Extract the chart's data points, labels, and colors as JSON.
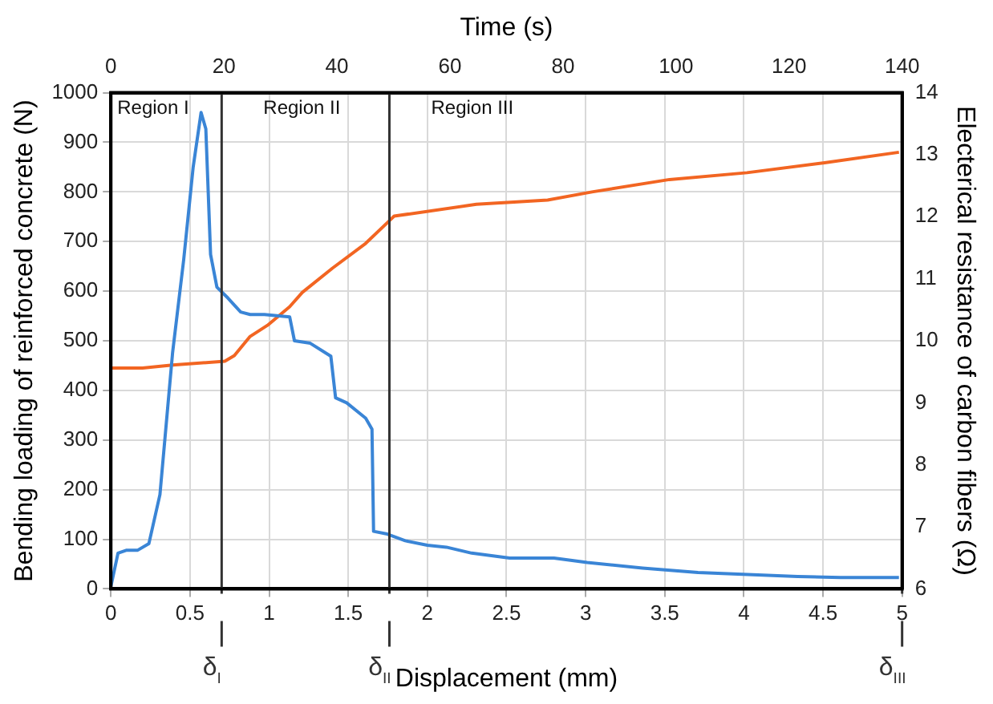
{
  "chart_data": {
    "type": "line",
    "xlabel": "Displacement (mm)",
    "x2label": "Time (s)",
    "ylabel": "Bending loading of reinforced concrete (N)",
    "y2label": "Electerical resistance of carbon fibers (Ω)",
    "xlim": [
      0,
      5
    ],
    "xticks": [
      0,
      0.5,
      1,
      1.5,
      2,
      2.5,
      3,
      3.5,
      4,
      4.5,
      5
    ],
    "x2lim": [
      0,
      140
    ],
    "x2ticks": [
      0,
      20,
      40,
      60,
      80,
      100,
      120,
      140
    ],
    "ylim": [
      0,
      1000
    ],
    "yticks": [
      0,
      100,
      200,
      300,
      400,
      500,
      600,
      700,
      800,
      900,
      1000
    ],
    "y2lim": [
      6,
      14
    ],
    "y2ticks": [
      6,
      7,
      8,
      9,
      10,
      11,
      12,
      13,
      14
    ],
    "grid": true,
    "legend": false,
    "marker": "none",
    "line_style": "solid",
    "series": [
      {
        "color": "#3a85d6",
        "x": [
          0,
          0.045,
          0.1,
          0.17,
          0.24,
          0.31,
          0.39,
          0.46,
          0.52,
          0.57,
          0.6,
          0.63,
          0.67,
          0.74,
          0.82,
          0.88,
          0.97,
          1.13,
          1.16,
          1.26,
          1.39,
          1.42,
          1.49,
          1.61,
          1.65,
          1.66,
          1.74,
          1.86,
          2.0,
          2.12,
          2.28,
          2.52,
          2.8,
          3.01,
          3.36,
          3.71,
          4.34,
          4.61,
          4.98
        ],
        "values": [
          5,
          72,
          78,
          78,
          91,
          190,
          476,
          663,
          850,
          960,
          927,
          674,
          608,
          586,
          558,
          553,
          553,
          548,
          500,
          495,
          469,
          385,
          375,
          344,
          322,
          116,
          111,
          97,
          88,
          84,
          72,
          62,
          62,
          53,
          42,
          33,
          25,
          23,
          23
        ]
      },
      {
        "color": "#f26522",
        "axis": "y2",
        "x": [
          0,
          0.2,
          0.39,
          0.72,
          0.78,
          0.88,
          0.99,
          1.13,
          1.21,
          1.4,
          1.61,
          1.77,
          1.79,
          2.31,
          2.76,
          3.04,
          3.53,
          4.02,
          4.51,
          4.98
        ],
        "values": [
          9.56,
          9.56,
          9.61,
          9.67,
          9.76,
          10.07,
          10.25,
          10.55,
          10.78,
          11.17,
          11.57,
          11.96,
          12.01,
          12.2,
          12.27,
          12.4,
          12.6,
          12.71,
          12.87,
          13.04
        ]
      }
    ],
    "ref_lines": [
      {
        "axis": "x",
        "value": 0.7,
        "label": "δ$_{I}$",
        "color": "#333333"
      },
      {
        "axis": "x",
        "value": 1.76,
        "label": "δ$_{II}$",
        "color": "#333333"
      },
      {
        "axis": "x",
        "value": 5,
        "label": "δ$_{III}$",
        "color": "#333333"
      }
    ],
    "annotations": [
      "Region I",
      "Region II",
      "Region III"
    ]
  }
}
